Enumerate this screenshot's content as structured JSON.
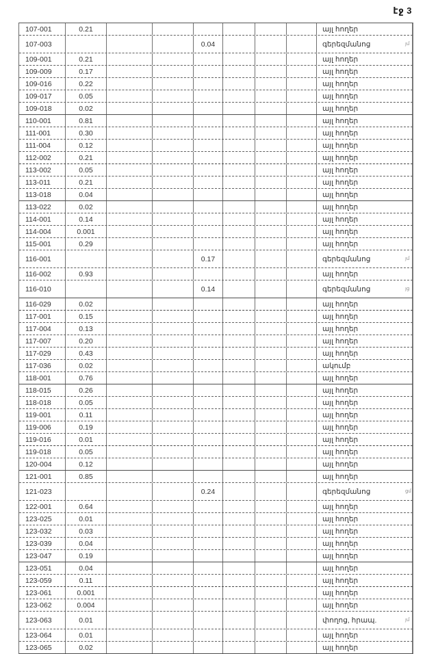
{
  "page": {
    "header": "էջ 3"
  },
  "labels": {
    "other_lands": "այլ հողեր",
    "cemetery": "գերեզմանոց",
    "club": "ակումբ",
    "street": "փողոց, հրապ."
  },
  "table": {
    "columns": [
      "code",
      "value",
      "",
      "",
      "mid_value",
      "",
      "",
      "",
      "land_type"
    ],
    "rows": [
      {
        "code": "107-001",
        "value": "0.21",
        "mid_value": "",
        "label": "այլ հողեր",
        "note": ""
      },
      {
        "code": "107-003",
        "value": "",
        "mid_value": "0.04",
        "label": "գերեզմանոց",
        "note": "յմ"
      },
      {
        "code": "109-001",
        "value": "0.21",
        "mid_value": "",
        "label": "այլ հողեր",
        "note": ""
      },
      {
        "code": "109-009",
        "value": "0.17",
        "mid_value": "",
        "label": "այլ հողեր",
        "note": ""
      },
      {
        "code": "109-016",
        "value": "0.22",
        "mid_value": "",
        "label": "այլ հողեր",
        "note": ""
      },
      {
        "code": "109-017",
        "value": "0.05",
        "mid_value": "",
        "label": "այլ հողեր",
        "note": ""
      },
      {
        "code": "109-018",
        "value": "0.02",
        "mid_value": "",
        "label": "այլ հողեր",
        "note": ""
      },
      {
        "code": "110-001",
        "value": "0.81",
        "mid_value": "",
        "label": "այլ հողեր",
        "note": ""
      },
      {
        "code": "111-001",
        "value": "0.30",
        "mid_value": "",
        "label": "այլ հողեր",
        "note": ""
      },
      {
        "code": "111-004",
        "value": "0.12",
        "mid_value": "",
        "label": "այլ հողեր",
        "note": ""
      },
      {
        "code": "112-002",
        "value": "0.21",
        "mid_value": "",
        "label": "այլ հողեր",
        "note": ""
      },
      {
        "code": "113-002",
        "value": "0.05",
        "mid_value": "",
        "label": "այլ հողեր",
        "note": ""
      },
      {
        "code": "113-011",
        "value": "0.21",
        "mid_value": "",
        "label": "այլ հողեր",
        "note": ""
      },
      {
        "code": "113-018",
        "value": "0.04",
        "mid_value": "",
        "label": "այլ հողեր",
        "note": ""
      },
      {
        "code": "113-022",
        "value": "0.02",
        "mid_value": "",
        "label": "այլ հողեր",
        "note": ""
      },
      {
        "code": "114-001",
        "value": "0.14",
        "mid_value": "",
        "label": "այլ հողեր",
        "note": ""
      },
      {
        "code": "114-004",
        "value": "0.001",
        "mid_value": "",
        "label": "այլ հողեր",
        "note": ""
      },
      {
        "code": "115-001",
        "value": "0.29",
        "mid_value": "",
        "label": "այլ հողեր",
        "note": ""
      },
      {
        "code": "116-001",
        "value": "",
        "mid_value": "0.17",
        "label": "գերեզմանոց",
        "note": "յմ"
      },
      {
        "code": "116-002",
        "value": "0.93",
        "mid_value": "",
        "label": "այլ հողեր",
        "note": ""
      },
      {
        "code": "116-010",
        "value": "",
        "mid_value": "0.14",
        "label": "գերեզմանոց",
        "note": "յց"
      },
      {
        "code": "116-029",
        "value": "0.02",
        "mid_value": "",
        "label": "այլ հողեր",
        "note": ""
      },
      {
        "code": "117-001",
        "value": "0.15",
        "mid_value": "",
        "label": "այլ հողեր",
        "note": ""
      },
      {
        "code": "117-004",
        "value": "0.13",
        "mid_value": "",
        "label": "այլ հողեր",
        "note": ""
      },
      {
        "code": "117-007",
        "value": "0.20",
        "mid_value": "",
        "label": "այլ հողեր",
        "note": ""
      },
      {
        "code": "117-029",
        "value": "0.43",
        "mid_value": "",
        "label": "այլ հողեր",
        "note": ""
      },
      {
        "code": "117-036",
        "value": "0.02",
        "mid_value": "",
        "label": "ակումբ",
        "note": ""
      },
      {
        "code": "118-001",
        "value": "0.76",
        "mid_value": "",
        "label": "այլ հողեր",
        "note": ""
      },
      {
        "code": "118-015",
        "value": "0.26",
        "mid_value": "",
        "label": "այլ հողեր",
        "note": ""
      },
      {
        "code": "118-018",
        "value": "0.05",
        "mid_value": "",
        "label": "այլ հողեր",
        "note": ""
      },
      {
        "code": "119-001",
        "value": "0.11",
        "mid_value": "",
        "label": "այլ հողեր",
        "note": ""
      },
      {
        "code": "119-006",
        "value": "0.19",
        "mid_value": "",
        "label": "այլ հողեր",
        "note": ""
      },
      {
        "code": "119-016",
        "value": "0.01",
        "mid_value": "",
        "label": "այլ հողեր",
        "note": ""
      },
      {
        "code": "119-018",
        "value": "0.05",
        "mid_value": "",
        "label": "այլ հողեր",
        "note": ""
      },
      {
        "code": "120-004",
        "value": "0.12",
        "mid_value": "",
        "label": "այլ հողեր",
        "note": ""
      },
      {
        "code": "121-001",
        "value": "0.85",
        "mid_value": "",
        "label": "այլ հողեր",
        "note": ""
      },
      {
        "code": "121-023",
        "value": "",
        "mid_value": "0.24",
        "label": "գերեզմանոց",
        "note": "ցմ"
      },
      {
        "code": "122-001",
        "value": "0.64",
        "mid_value": "",
        "label": "այլ հողեր",
        "note": ""
      },
      {
        "code": "123-025",
        "value": "0.01",
        "mid_value": "",
        "label": "այլ հողեր",
        "note": ""
      },
      {
        "code": "123-032",
        "value": "0.03",
        "mid_value": "",
        "label": "այլ հողեր",
        "note": ""
      },
      {
        "code": "123-039",
        "value": "0.04",
        "mid_value": "",
        "label": "այլ հողեր",
        "note": ""
      },
      {
        "code": "123-047",
        "value": "0.19",
        "mid_value": "",
        "label": "այլ հողեր",
        "note": ""
      },
      {
        "code": "123-051",
        "value": "0.04",
        "mid_value": "",
        "label": "այլ հողեր",
        "note": ""
      },
      {
        "code": "123-059",
        "value": "0.11",
        "mid_value": "",
        "label": "այլ հողեր",
        "note": ""
      },
      {
        "code": "123-061",
        "value": "0.001",
        "mid_value": "",
        "label": "այլ հողեր",
        "note": ""
      },
      {
        "code": "123-062",
        "value": "0.004",
        "mid_value": "",
        "label": "այլ հողեր",
        "note": ""
      },
      {
        "code": "123-063",
        "value": "0.01",
        "mid_value": "",
        "label": "փողոց, հրապ.",
        "note": "յմ"
      },
      {
        "code": "123-064",
        "value": "0.01",
        "mid_value": "",
        "label": "այլ հողեր",
        "note": ""
      },
      {
        "code": "123-065",
        "value": "0.02",
        "mid_value": "",
        "label": "այլ հողեր",
        "note": ""
      }
    ]
  }
}
